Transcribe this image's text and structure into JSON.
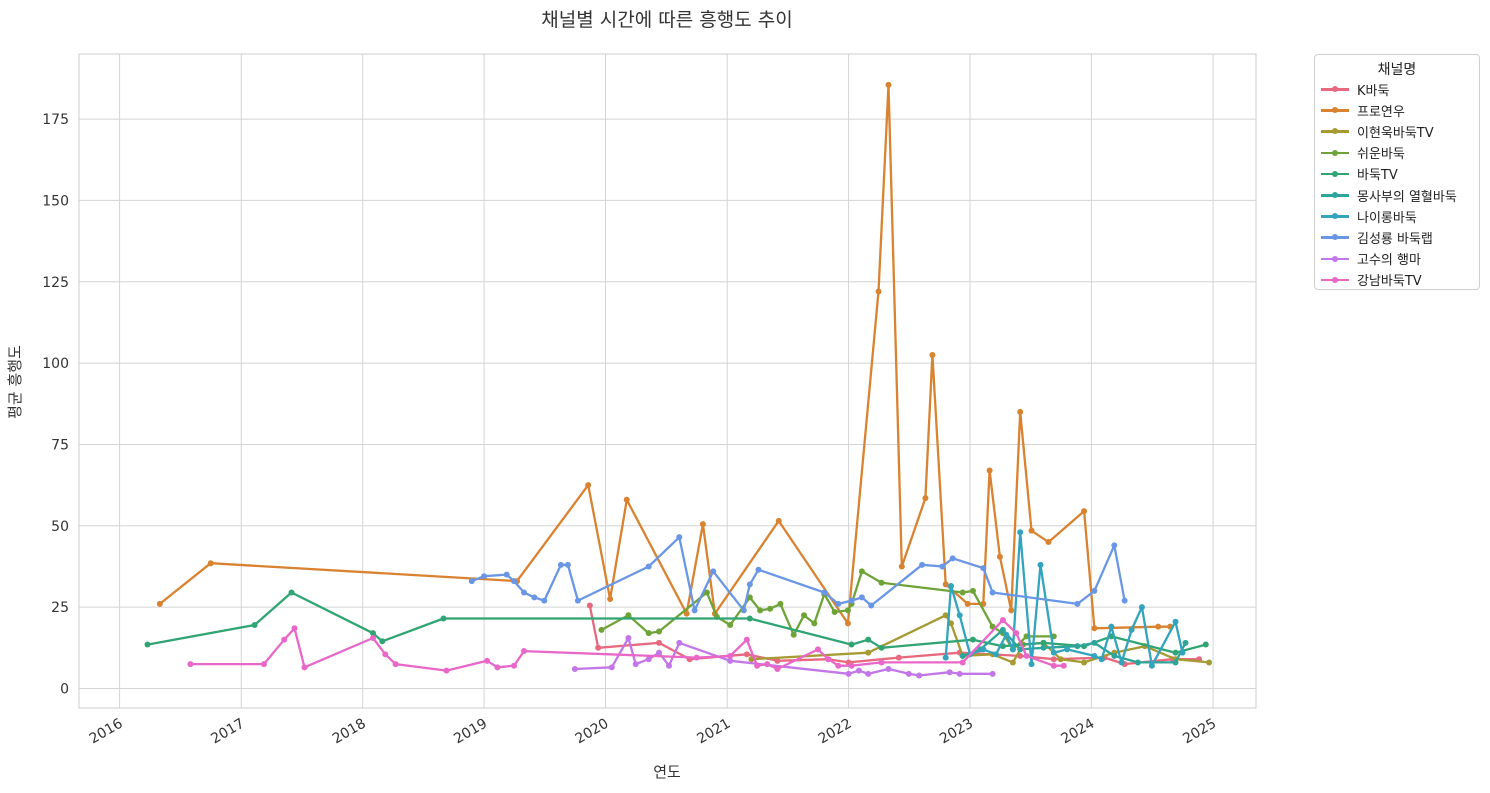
{
  "chart_data": {
    "type": "line",
    "title": "채널별 시간에 따른 흥행도 추이",
    "xlabel": "연도",
    "ylabel": "평균 흥행도",
    "xlim": [
      "2015-09-01",
      "2025-05-10"
    ],
    "ylim": [
      -6,
      195
    ],
    "yticks": [
      0,
      25,
      50,
      75,
      100,
      125,
      150,
      175
    ],
    "xticks": [
      "2016",
      "2017",
      "2018",
      "2019",
      "2020",
      "2021",
      "2022",
      "2023",
      "2024",
      "2025"
    ],
    "grid": true,
    "legend_title": "채널명",
    "legend_position": "outside-top-right",
    "series": [
      {
        "name": "K바둑",
        "color": "#e8697f",
        "points": [
          [
            "2019-11-15",
            25.5
          ],
          [
            "2019-12-10",
            12.5
          ],
          [
            "2020-06-10",
            14
          ],
          [
            "2020-09-10",
            9
          ],
          [
            "2021-03-01",
            10.5
          ],
          [
            "2021-06-01",
            8.5
          ],
          [
            "2021-11-01",
            9
          ],
          [
            "2022-01-01",
            8
          ],
          [
            "2022-06-01",
            9.5
          ],
          [
            "2022-12-01",
            11
          ],
          [
            "2023-06-01",
            10
          ],
          [
            "2023-09-10",
            9
          ],
          [
            "2024-02-10",
            9.5
          ],
          [
            "2024-04-10",
            7.5
          ],
          [
            "2024-09-01",
            9
          ],
          [
            "2024-11-20",
            9
          ]
        ]
      },
      {
        "name": "프로연우",
        "color": "#d9822f",
        "points": [
          [
            "2016-05-01",
            26
          ],
          [
            "2016-10-01",
            38.5
          ],
          [
            "2019-04-10",
            33
          ],
          [
            "2019-11-10",
            62.5
          ],
          [
            "2020-01-15",
            27.5
          ],
          [
            "2020-03-05",
            58
          ],
          [
            "2020-09-01",
            23
          ],
          [
            "2020-10-20",
            50.5
          ],
          [
            "2020-11-25",
            23
          ],
          [
            "2021-06-05",
            51.5
          ],
          [
            "2021-12-30",
            20
          ],
          [
            "2022-04-01",
            122
          ],
          [
            "2022-05-01",
            185.5
          ],
          [
            "2022-06-10",
            37.5
          ],
          [
            "2022-08-20",
            58.5
          ],
          [
            "2022-09-10",
            102.5
          ],
          [
            "2022-10-20",
            32
          ],
          [
            "2022-12-25",
            26
          ],
          [
            "2023-02-10",
            26
          ],
          [
            "2023-03-01",
            67
          ],
          [
            "2023-04-01",
            40.5
          ],
          [
            "2023-05-05",
            24
          ],
          [
            "2023-06-01",
            85
          ],
          [
            "2023-07-05",
            48.5
          ],
          [
            "2023-08-25",
            45
          ],
          [
            "2023-12-10",
            54.5
          ],
          [
            "2024-01-10",
            18.5
          ],
          [
            "2024-07-20",
            19
          ],
          [
            "2024-08-25",
            19
          ]
        ]
      },
      {
        "name": "이현욱바둑TV",
        "color": "#a69a33",
        "points": [
          [
            "2021-03-15",
            9
          ],
          [
            "2022-03-01",
            11
          ],
          [
            "2022-10-20",
            22.5
          ],
          [
            "2022-11-05",
            20
          ],
          [
            "2022-12-10",
            10
          ],
          [
            "2023-03-10",
            10.5
          ],
          [
            "2023-05-10",
            8
          ],
          [
            "2023-06-10",
            13.5
          ],
          [
            "2023-08-10",
            14
          ],
          [
            "2023-10-01",
            9
          ],
          [
            "2023-12-10",
            8
          ],
          [
            "2024-03-10",
            11
          ],
          [
            "2024-06-10",
            13
          ],
          [
            "2024-09-10",
            9
          ],
          [
            "2024-12-20",
            8
          ]
        ]
      },
      {
        "name": "쉬운바둑",
        "color": "#6ea338",
        "points": [
          [
            "2019-12-20",
            18
          ],
          [
            "2020-03-10",
            22.5
          ],
          [
            "2020-05-10",
            17
          ],
          [
            "2020-06-10",
            17.5
          ],
          [
            "2020-11-01",
            29.5
          ],
          [
            "2020-12-01",
            22
          ],
          [
            "2021-01-10",
            19.5
          ],
          [
            "2021-03-10",
            28
          ],
          [
            "2021-04-10",
            24
          ],
          [
            "2021-05-10",
            24.5
          ],
          [
            "2021-06-10",
            26
          ],
          [
            "2021-07-20",
            16.5
          ],
          [
            "2021-08-20",
            22.5
          ],
          [
            "2021-09-20",
            20
          ],
          [
            "2021-10-20",
            29
          ],
          [
            "2021-11-20",
            23.5
          ],
          [
            "2021-12-30",
            24
          ],
          [
            "2022-01-10",
            26
          ],
          [
            "2022-02-10",
            36
          ],
          [
            "2022-04-10",
            32.5
          ],
          [
            "2022-12-10",
            29.5
          ],
          [
            "2023-01-10",
            30
          ],
          [
            "2023-03-10",
            19
          ],
          [
            "2023-04-10",
            17
          ],
          [
            "2023-05-10",
            12
          ],
          [
            "2023-06-20",
            16
          ],
          [
            "2023-09-10",
            16
          ]
        ]
      },
      {
        "name": "바둑TV",
        "color": "#31a474",
        "points": [
          [
            "2016-03-25",
            13.5
          ],
          [
            "2017-02-10",
            19.5
          ],
          [
            "2017-06-01",
            29.5
          ],
          [
            "2018-02-01",
            17
          ],
          [
            "2018-03-01",
            14.5
          ],
          [
            "2018-09-01",
            21.5
          ],
          [
            "2021-03-10",
            21.5
          ],
          [
            "2022-01-10",
            13.5
          ],
          [
            "2022-03-01",
            15
          ],
          [
            "2022-04-10",
            12.5
          ],
          [
            "2023-01-10",
            15
          ],
          [
            "2023-04-10",
            13
          ],
          [
            "2023-08-10",
            14
          ],
          [
            "2023-12-10",
            13
          ],
          [
            "2024-03-01",
            16
          ],
          [
            "2024-09-10",
            11
          ],
          [
            "2024-12-10",
            13.5
          ]
        ]
      },
      {
        "name": "몽사부의 열혈바둑",
        "color": "#2ea59a",
        "points": [
          [
            "2022-12-10",
            10
          ],
          [
            "2023-02-01",
            12
          ],
          [
            "2023-04-10",
            18
          ],
          [
            "2023-06-01",
            12
          ],
          [
            "2023-08-10",
            12.5
          ],
          [
            "2023-11-20",
            13
          ],
          [
            "2024-01-10",
            14
          ],
          [
            "2024-03-10",
            10
          ],
          [
            "2024-05-20",
            8
          ],
          [
            "2024-09-10",
            8
          ],
          [
            "2024-10-10",
            14
          ]
        ]
      },
      {
        "name": "나이롱바둑",
        "color": "#33a4bd",
        "points": [
          [
            "2022-10-20",
            9.5
          ],
          [
            "2022-11-05",
            31.5
          ],
          [
            "2022-12-01",
            22.5
          ],
          [
            "2023-01-01",
            10.5
          ],
          [
            "2023-02-10",
            12
          ],
          [
            "2023-03-20",
            10.5
          ],
          [
            "2023-04-20",
            16.5
          ],
          [
            "2023-05-10",
            12
          ],
          [
            "2023-06-01",
            48
          ],
          [
            "2023-07-05",
            7.5
          ],
          [
            "2023-08-01",
            38
          ],
          [
            "2023-09-10",
            11
          ],
          [
            "2023-10-20",
            12
          ],
          [
            "2024-01-10",
            10
          ],
          [
            "2024-02-01",
            9
          ],
          [
            "2024-03-01",
            19
          ],
          [
            "2024-04-01",
            8
          ],
          [
            "2024-05-01",
            18
          ],
          [
            "2024-06-01",
            25
          ],
          [
            "2024-07-01",
            7
          ],
          [
            "2024-09-10",
            20.5
          ],
          [
            "2024-10-01",
            11
          ]
        ]
      },
      {
        "name": "김성룡 바둑랩",
        "color": "#6a96e6",
        "points": [
          [
            "2018-11-25",
            33
          ],
          [
            "2019-01-01",
            34.5
          ],
          [
            "2019-03-10",
            35
          ],
          [
            "2019-04-01",
            33
          ],
          [
            "2019-05-01",
            29.5
          ],
          [
            "2019-06-01",
            28
          ],
          [
            "2019-07-01",
            27
          ],
          [
            "2019-08-20",
            38
          ],
          [
            "2019-09-10",
            38
          ],
          [
            "2019-10-10",
            27
          ],
          [
            "2020-05-10",
            37.5
          ],
          [
            "2020-08-10",
            46.5
          ],
          [
            "2020-09-25",
            24
          ],
          [
            "2020-11-20",
            36
          ],
          [
            "2021-02-20",
            24
          ],
          [
            "2021-03-10",
            32
          ],
          [
            "2021-04-05",
            36.5
          ],
          [
            "2021-10-20",
            29.5
          ],
          [
            "2021-12-01",
            26
          ],
          [
            "2022-01-10",
            27
          ],
          [
            "2022-02-10",
            28
          ],
          [
            "2022-03-10",
            25.5
          ],
          [
            "2022-08-10",
            38
          ],
          [
            "2022-10-10",
            37.5
          ],
          [
            "2022-11-10",
            40
          ],
          [
            "2023-02-10",
            37
          ],
          [
            "2023-03-10",
            29.5
          ],
          [
            "2023-11-20",
            26
          ],
          [
            "2024-01-10",
            30
          ],
          [
            "2024-03-10",
            44
          ],
          [
            "2024-04-10",
            27
          ]
        ]
      },
      {
        "name": "고수의 행마",
        "color": "#c276e7",
        "points": [
          [
            "2019-10-01",
            6
          ],
          [
            "2020-01-20",
            6.5
          ],
          [
            "2020-03-10",
            15.5
          ],
          [
            "2020-04-01",
            7.5
          ],
          [
            "2020-05-10",
            9
          ],
          [
            "2020-06-10",
            11
          ],
          [
            "2020-07-10",
            7
          ],
          [
            "2020-08-10",
            14
          ],
          [
            "2021-01-10",
            8.5
          ],
          [
            "2022-01-01",
            4.5
          ],
          [
            "2022-02-01",
            5.5
          ],
          [
            "2022-03-01",
            4.5
          ],
          [
            "2022-05-01",
            6
          ],
          [
            "2022-07-01",
            4.5
          ],
          [
            "2022-08-01",
            4
          ],
          [
            "2022-11-01",
            5
          ],
          [
            "2022-12-01",
            4.5
          ],
          [
            "2023-03-10",
            4.5
          ]
        ]
      },
      {
        "name": "강남바둑TV",
        "color": "#e867c8",
        "points": [
          [
            "2016-08-01",
            7.5
          ],
          [
            "2017-03-10",
            7.5
          ],
          [
            "2017-05-10",
            15
          ],
          [
            "2017-06-10",
            18.5
          ],
          [
            "2017-07-10",
            6.5
          ],
          [
            "2018-02-01",
            15.5
          ],
          [
            "2018-03-10",
            10.5
          ],
          [
            "2018-04-10",
            7.5
          ],
          [
            "2018-09-10",
            5.5
          ],
          [
            "2019-01-10",
            8.5
          ],
          [
            "2019-02-10",
            6.5
          ],
          [
            "2019-04-01",
            7
          ],
          [
            "2019-05-01",
            11.5
          ],
          [
            "2020-10-01",
            9.5
          ],
          [
            "2021-01-10",
            10
          ],
          [
            "2021-03-01",
            15
          ],
          [
            "2021-04-01",
            7
          ],
          [
            "2021-05-01",
            7.5
          ],
          [
            "2021-06-01",
            6
          ],
          [
            "2021-10-01",
            12
          ],
          [
            "2021-11-01",
            9
          ],
          [
            "2021-12-01",
            7
          ],
          [
            "2022-01-10",
            7
          ],
          [
            "2022-04-10",
            8
          ],
          [
            "2022-12-10",
            8
          ],
          [
            "2023-04-10",
            21
          ],
          [
            "2023-05-20",
            17
          ],
          [
            "2023-06-20",
            10
          ],
          [
            "2023-09-10",
            7
          ],
          [
            "2023-10-10",
            7
          ]
        ]
      }
    ]
  }
}
